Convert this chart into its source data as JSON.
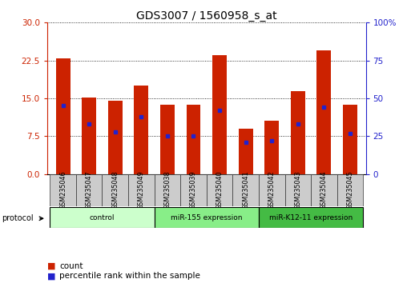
{
  "title": "GDS3007 / 1560958_s_at",
  "samples": [
    "GSM235046",
    "GSM235047",
    "GSM235048",
    "GSM235049",
    "GSM235038",
    "GSM235039",
    "GSM235040",
    "GSM235041",
    "GSM235042",
    "GSM235043",
    "GSM235044",
    "GSM235045"
  ],
  "counts": [
    23.0,
    15.2,
    14.5,
    17.5,
    13.8,
    13.8,
    23.5,
    9.0,
    10.5,
    16.5,
    24.5,
    13.8
  ],
  "percentile_ranks_pct": [
    45,
    33,
    28,
    38,
    25,
    25,
    42,
    21,
    22,
    33,
    44,
    27
  ],
  "bar_color": "#cc2200",
  "dot_color": "#2222cc",
  "ylim_left": [
    0,
    30
  ],
  "ylim_right": [
    0,
    100
  ],
  "yticks_left": [
    0,
    7.5,
    15,
    22.5,
    30
  ],
  "yticks_right": [
    0,
    25,
    50,
    75,
    100
  ],
  "groups": [
    {
      "label": "control",
      "start": 0,
      "end": 4,
      "color": "#ccffcc"
    },
    {
      "label": "miR-155 expression",
      "start": 4,
      "end": 8,
      "color": "#88ee88"
    },
    {
      "label": "miR-K12-11 expression",
      "start": 8,
      "end": 12,
      "color": "#44bb44"
    }
  ],
  "legend_count_color": "#cc2200",
  "legend_pct_color": "#2222cc",
  "ylabel_left_color": "#cc2200",
  "ylabel_right_color": "#2222cc",
  "bar_width": 0.55,
  "background_color": "#ffffff",
  "title_fontsize": 10
}
